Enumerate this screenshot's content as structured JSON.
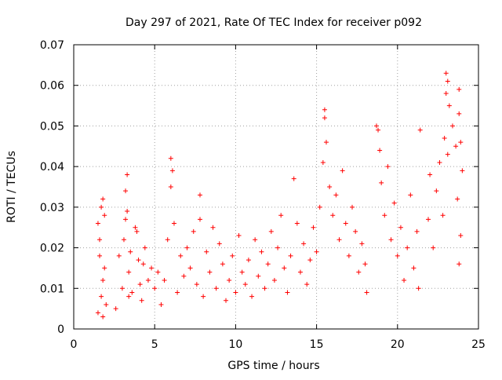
{
  "colors": {
    "series": "#ff0000",
    "grid": "#a0a0a0",
    "axis": "#000000"
  },
  "chart_data": {
    "type": "scatter",
    "title": "Day 297 of 2021, Rate Of TEC Index for receiver p092",
    "xlabel": "GPS time / hours",
    "ylabel": "ROTI / TECUs",
    "xlim": [
      0,
      25
    ],
    "ylim": [
      0,
      0.07
    ],
    "xticks": [
      0,
      5,
      10,
      15,
      20,
      25
    ],
    "yticks": [
      0,
      0.01,
      0.02,
      0.03,
      0.04,
      0.05,
      0.06,
      0.07
    ],
    "xtick_labels": [
      "0",
      "5",
      "10",
      "15",
      "20",
      "25"
    ],
    "ytick_labels": [
      "0",
      "0.01",
      "0.02",
      "0.03",
      "0.04",
      "0.05",
      "0.06",
      "0.07"
    ],
    "grid": true,
    "marker": "plus",
    "series": [
      {
        "x": [
          1.5,
          1.6,
          1.7,
          1.8,
          1.9,
          2.0,
          1.6,
          1.8,
          1.7,
          1.9,
          1.5,
          1.8,
          2.6,
          2.8,
          3.0,
          3.2,
          3.3,
          3.1,
          3.4,
          3.6,
          3.8,
          4.0,
          4.2,
          4.4,
          4.6,
          4.8,
          3.2,
          3.3,
          3.4,
          3.5,
          3.9,
          4.1,
          4.3,
          5.0,
          5.2,
          5.4,
          5.6,
          5.8,
          6.0,
          6.1,
          6.0,
          6.2,
          6.4,
          6.6,
          6.8,
          7.0,
          7.2,
          7.4,
          7.6,
          7.8,
          7.8,
          8.0,
          8.2,
          8.4,
          8.6,
          8.8,
          9.0,
          9.2,
          9.4,
          9.6,
          9.8,
          10.0,
          10.2,
          10.4,
          10.6,
          10.8,
          11.0,
          11.2,
          11.4,
          11.6,
          11.8,
          12.0,
          12.2,
          12.4,
          12.6,
          12.8,
          13.0,
          13.2,
          13.4,
          13.6,
          13.8,
          14.0,
          14.2,
          14.4,
          14.6,
          14.8,
          15.0,
          15.2,
          15.4,
          15.5,
          15.5,
          15.6,
          15.8,
          16.0,
          16.2,
          16.4,
          16.6,
          16.8,
          17.0,
          17.2,
          17.4,
          17.6,
          17.8,
          18.0,
          18.1,
          18.7,
          18.8,
          18.9,
          19.0,
          19.2,
          19.4,
          19.6,
          19.8,
          20.0,
          20.2,
          20.4,
          20.6,
          20.8,
          21.0,
          21.2,
          21.3,
          21.4,
          21.9,
          22.0,
          22.2,
          22.4,
          22.6,
          22.8,
          23.0,
          23.1,
          23.0,
          23.2,
          23.4,
          23.6,
          23.8,
          23.8,
          23.9,
          24.0,
          23.7,
          23.9,
          23.8,
          22.9,
          23.1
        ],
        "y": [
          0.004,
          0.022,
          0.03,
          0.012,
          0.028,
          0.006,
          0.018,
          0.032,
          0.008,
          0.015,
          0.026,
          0.003,
          0.005,
          0.018,
          0.01,
          0.027,
          0.038,
          0.022,
          0.014,
          0.009,
          0.025,
          0.017,
          0.007,
          0.02,
          0.012,
          0.015,
          0.034,
          0.029,
          0.008,
          0.019,
          0.024,
          0.011,
          0.016,
          0.01,
          0.014,
          0.006,
          0.012,
          0.022,
          0.042,
          0.039,
          0.035,
          0.026,
          0.009,
          0.018,
          0.013,
          0.02,
          0.015,
          0.024,
          0.011,
          0.033,
          0.027,
          0.008,
          0.019,
          0.014,
          0.025,
          0.01,
          0.021,
          0.016,
          0.007,
          0.012,
          0.018,
          0.009,
          0.023,
          0.014,
          0.011,
          0.017,
          0.008,
          0.022,
          0.013,
          0.019,
          0.01,
          0.016,
          0.024,
          0.012,
          0.02,
          0.028,
          0.015,
          0.009,
          0.018,
          0.037,
          0.026,
          0.014,
          0.021,
          0.011,
          0.017,
          0.025,
          0.019,
          0.03,
          0.041,
          0.054,
          0.052,
          0.046,
          0.035,
          0.028,
          0.033,
          0.022,
          0.039,
          0.026,
          0.018,
          0.03,
          0.024,
          0.014,
          0.021,
          0.016,
          0.009,
          0.05,
          0.049,
          0.044,
          0.036,
          0.028,
          0.04,
          0.022,
          0.031,
          0.018,
          0.025,
          0.012,
          0.02,
          0.033,
          0.015,
          0.024,
          0.01,
          0.049,
          0.027,
          0.038,
          0.02,
          0.034,
          0.041,
          0.028,
          0.063,
          0.061,
          0.058,
          0.055,
          0.05,
          0.045,
          0.059,
          0.053,
          0.046,
          0.039,
          0.032,
          0.023,
          0.016,
          0.047,
          0.043
        ]
      }
    ]
  }
}
